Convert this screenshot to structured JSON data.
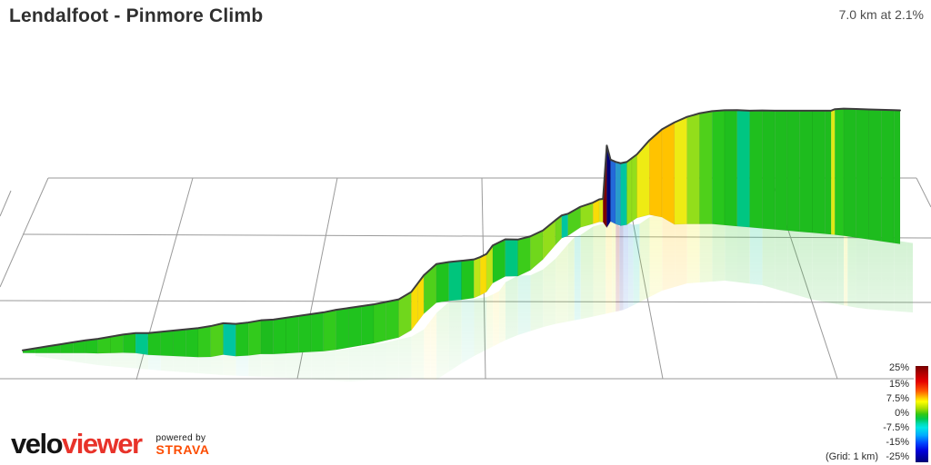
{
  "header": {
    "title": "Lendalfoot - Pinmore Climb",
    "summary": "7.0 km at 2.1%"
  },
  "legend": {
    "ticks": [
      "25%",
      "15%",
      "7.5%",
      "0%",
      "-7.5%",
      "-15%",
      "-25%"
    ],
    "grid_label": "(Grid: 1 km)",
    "colorbar_stops": [
      "#780000 0%",
      "#b40000 8%",
      "#e60000 16%",
      "#ff5a00 26%",
      "#ffc800 33%",
      "#ffff00 37%",
      "#aade00 44%",
      "#32c814 50%",
      "#00c850 55%",
      "#00dcb4 60%",
      "#00e6e6 64%",
      "#00aaff 72%",
      "#0046ff 80%",
      "#0000dc 88%",
      "#000078 100%"
    ]
  },
  "footer": {
    "brand_velo": "velo",
    "brand_viewer": "viewer",
    "powered_by": "powered by",
    "strava": "STRAVA"
  },
  "colors": {
    "title_text": "#303030",
    "grid_line": "#9a9a9a",
    "outline": "#3c3c3c",
    "brand_red": "#e8332a",
    "strava_orange": "#fc4c02"
  },
  "chart_data": {
    "type": "area",
    "subtype": "3d-elevation-profile",
    "title": "Lendalfoot - Pinmore Climb",
    "total_distance_km": 7.0,
    "avg_gradient_pct": 2.1,
    "grid_spacing_km": 1,
    "gradient_scale_ticks_pct": [
      25,
      15,
      7.5,
      0,
      -7.5,
      -15,
      -25
    ],
    "profile": {
      "distance_km": [
        0,
        0.1,
        0.2,
        0.3,
        0.4,
        0.5,
        0.6,
        0.7,
        0.8,
        0.9,
        1.0,
        1.1,
        1.2,
        1.3,
        1.4,
        1.5,
        1.6,
        1.7,
        1.8,
        1.9,
        2.0,
        2.1,
        2.2,
        2.3,
        2.4,
        2.5,
        2.6,
        2.7,
        2.8,
        2.9,
        3.0,
        3.1,
        3.15,
        3.2,
        3.3,
        3.4,
        3.5,
        3.6,
        3.65,
        3.7,
        3.75,
        3.85,
        3.95,
        4.05,
        4.15,
        4.25,
        4.3,
        4.35,
        4.45,
        4.55,
        4.6,
        4.63,
        4.66,
        4.69,
        4.73,
        4.77,
        4.82,
        4.86,
        4.9,
        5.0,
        5.1,
        5.2,
        5.3,
        5.4,
        5.5,
        5.6,
        5.7,
        5.8,
        5.9,
        6.0,
        6.1,
        6.2,
        6.3,
        6.4,
        6.45,
        6.48,
        6.55,
        6.65,
        6.75,
        6.85,
        6.95,
        7.0
      ],
      "elevation_m": [
        8,
        9,
        10,
        11,
        12,
        13,
        14,
        16,
        18,
        19,
        18,
        19,
        20,
        21,
        22,
        24,
        27,
        25,
        26,
        28,
        28,
        29,
        30,
        31,
        32,
        34,
        35,
        36,
        37,
        39,
        41,
        45,
        49,
        53,
        56,
        57,
        56.8,
        58,
        61,
        65,
        68,
        69,
        68.6,
        71,
        75,
        80,
        82,
        81,
        84,
        89,
        93,
        95,
        163,
        104,
        100,
        97,
        96,
        98,
        100,
        107,
        116,
        125,
        132,
        137,
        140,
        141.5,
        142,
        141.5,
        142,
        142,
        142,
        142,
        142,
        142,
        142,
        144,
        145,
        145,
        145,
        145,
        145,
        145
      ]
    }
  }
}
